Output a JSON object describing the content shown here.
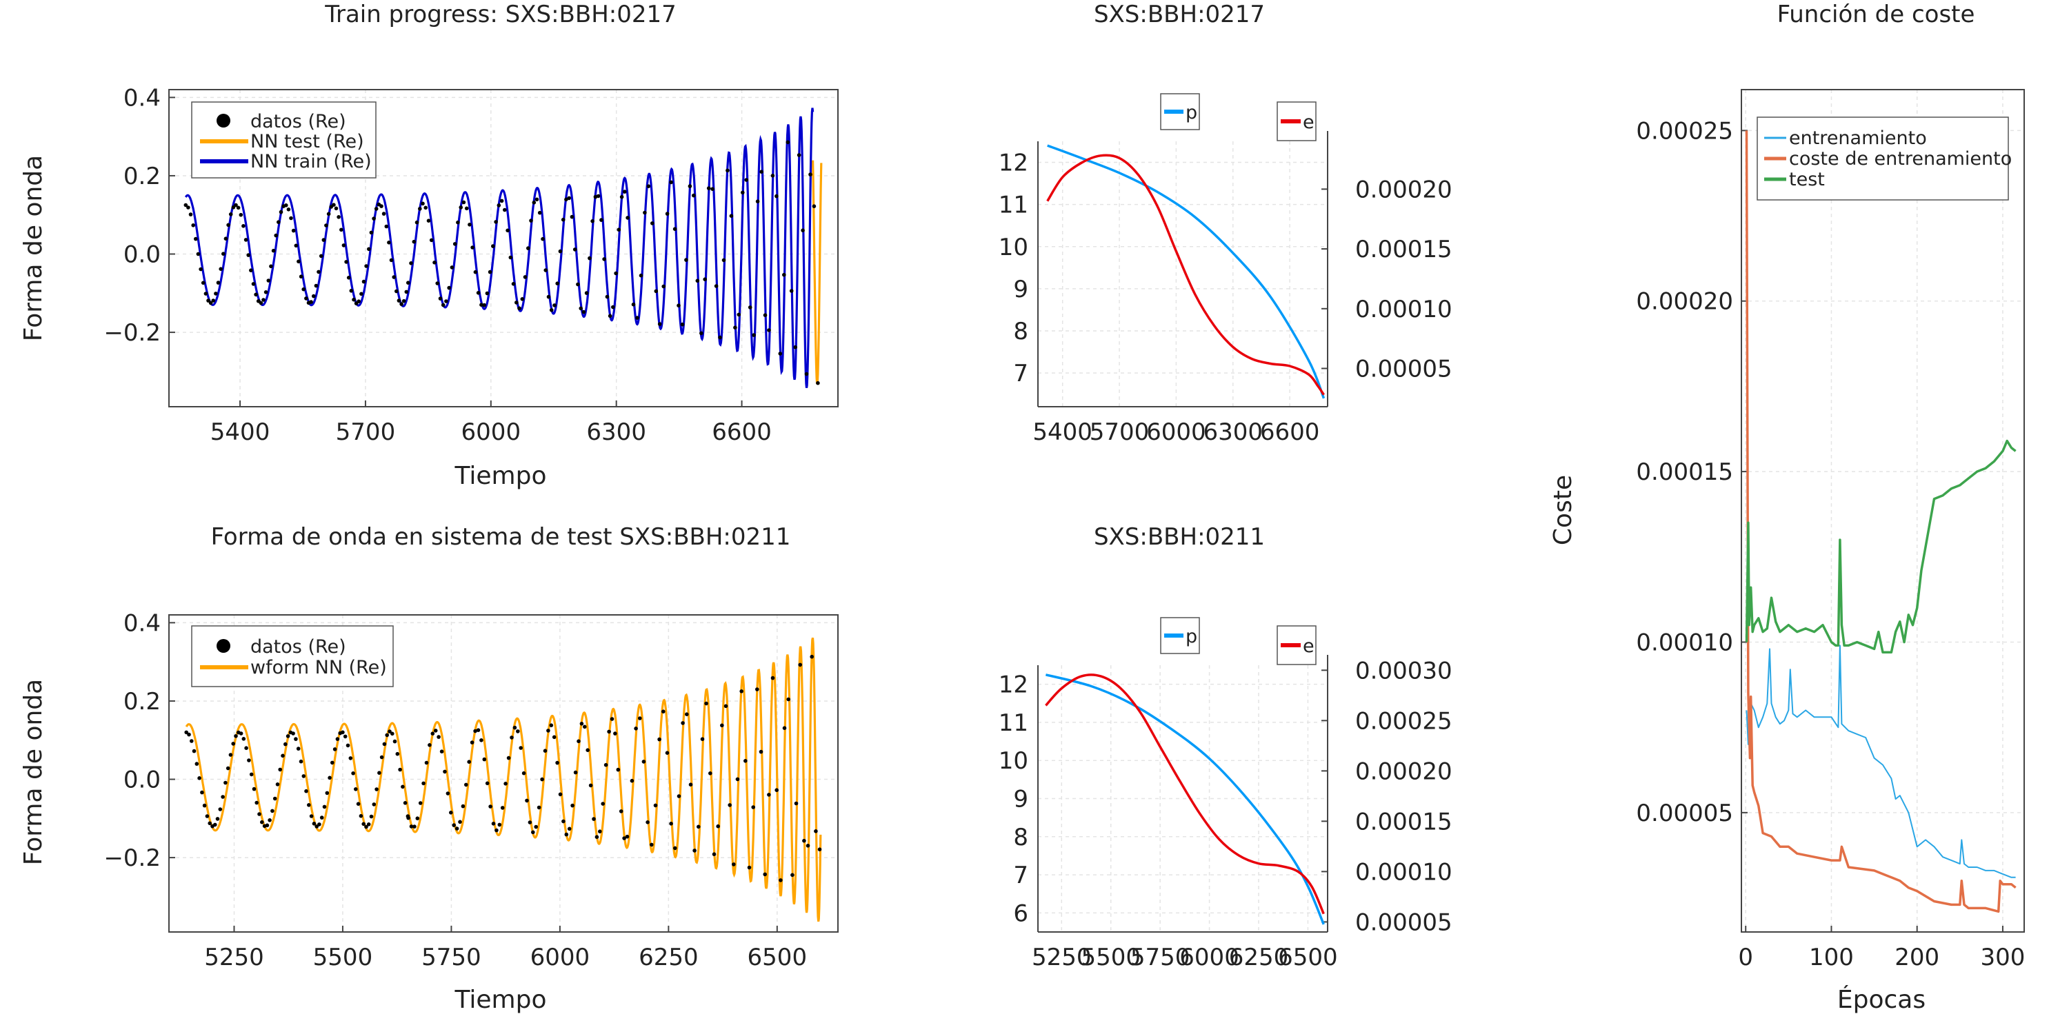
{
  "chart_data": [
    {
      "id": "train",
      "type": "line",
      "title": "Train progress: SXS:BBH:0217",
      "xlabel": "Tiempo",
      "ylabel": "Forma de onda",
      "xlim": [
        5230,
        6830
      ],
      "ylim": [
        -0.39,
        0.42
      ],
      "xticks": [
        5400,
        5700,
        6000,
        6300,
        6600
      ],
      "yticks": [
        -0.2,
        0.0,
        0.2,
        0.4
      ],
      "ytick_labels": [
        "−0.2",
        "0.0",
        "0.2",
        "0.4"
      ],
      "grid": true,
      "legend": "top-left",
      "signal": {
        "t_start": 5270,
        "t_end": 6790,
        "period_start": 120,
        "period_end": 26,
        "amp_start": 0.125,
        "amp_end": 0.34
      },
      "series": [
        {
          "name": "datos (Re)",
          "kind": "dots",
          "color": "#000000",
          "t_start": 5270,
          "t_end": 6790,
          "amp_scale": 1.0,
          "phase": 0.0,
          "amp_shift": 0
        },
        {
          "name": "NN test (Re)",
          "kind": "line",
          "color": "#ffa500",
          "t_start": 6770,
          "t_end": 6790,
          "amp_scale": 1.0,
          "phase": 0.25,
          "amp_shift": 0
        },
        {
          "name": "NN train (Re)",
          "kind": "line",
          "color": "#0000cd",
          "t_start": 5270,
          "t_end": 6770,
          "amp_scale": 1.12,
          "phase": -0.25,
          "amp_shift": 0.01
        }
      ]
    },
    {
      "id": "test",
      "type": "line",
      "title": "Forma de onda en sistema de test SXS:BBH:0211",
      "xlabel": "Tiempo",
      "ylabel": "Forma de onda",
      "xlim": [
        5100,
        6640
      ],
      "ylim": [
        -0.39,
        0.42
      ],
      "xticks": [
        5250,
        5500,
        5750,
        6000,
        6250,
        6500
      ],
      "yticks": [
        -0.2,
        0.0,
        0.2,
        0.4
      ],
      "ytick_labels": [
        "−0.2",
        "0.0",
        "0.2",
        "0.4"
      ],
      "grid": true,
      "legend": "top-left",
      "signal": {
        "t_start": 5140,
        "t_end": 6600,
        "period_start": 122,
        "period_end": 26,
        "amp_start": 0.12,
        "amp_end": 0.33
      },
      "series": [
        {
          "name": "datos (Re)",
          "kind": "dots",
          "color": "#000000",
          "t_start": 5140,
          "t_end": 6600,
          "amp_scale": 1.0,
          "phase": 0.0,
          "amp_shift": 0
        },
        {
          "name": "wform NN (Re)",
          "kind": "line",
          "color": "#ffa500",
          "t_start": 5140,
          "t_end": 6600,
          "amp_scale": 1.13,
          "phase": -0.3,
          "amp_shift": 0.005
        }
      ]
    },
    {
      "id": "orbit1",
      "type": "line",
      "title": "SXS:BBH:0217",
      "xlim": [
        5270,
        6800
      ],
      "xticks": [
        5400,
        5700,
        6000,
        6300,
        6600
      ],
      "left_ylim": [
        6.2,
        12.5
      ],
      "left_yticks": [
        7,
        8,
        9,
        10,
        11,
        12
      ],
      "right_ylim": [
        1.8e-05,
        0.00024
      ],
      "right_yticks": [
        5e-05,
        0.0001,
        0.00015,
        0.0002
      ],
      "right_ytick_labels": [
        "0.00005",
        "0.00010",
        "0.00015",
        "0.00020"
      ],
      "grid": true,
      "series": [
        {
          "name": "p",
          "axis": "left",
          "color": "#009af9",
          "x": [
            5320,
            5500,
            5700,
            5900,
            6100,
            6300,
            6500,
            6700,
            6780
          ],
          "y": [
            12.4,
            12.1,
            11.75,
            11.3,
            10.7,
            9.85,
            8.8,
            7.3,
            6.4
          ]
        },
        {
          "name": "e",
          "axis": "right",
          "color": "#e8000b",
          "x": [
            5320,
            5400,
            5500,
            5600,
            5700,
            5800,
            5900,
            6000,
            6100,
            6200,
            6300,
            6400,
            6500,
            6600,
            6700,
            6750,
            6780
          ],
          "y": [
            0.00019,
            0.00021,
            0.000222,
            0.000228,
            0.000226,
            0.000212,
            0.000186,
            0.000148,
            0.000112,
            8.6e-05,
            6.8e-05,
            5.8e-05,
            5.4e-05,
            5.2e-05,
            4.5e-05,
            3.5e-05,
            2.8e-05
          ]
        }
      ]
    },
    {
      "id": "orbit2",
      "type": "line",
      "title": "SXS:BBH:0211",
      "xlim": [
        5130,
        6600
      ],
      "xticks": [
        5250,
        5500,
        5750,
        6000,
        6250,
        6500
      ],
      "left_ylim": [
        5.5,
        12.5
      ],
      "left_yticks": [
        6,
        7,
        8,
        9,
        10,
        11,
        12
      ],
      "right_ylim": [
        4e-05,
        0.000305
      ],
      "right_yticks": [
        5e-05,
        0.0001,
        0.00015,
        0.0002,
        0.00025,
        0.0003
      ],
      "right_ytick_labels": [
        "0.00005",
        "0.00010",
        "0.00015",
        "0.00020",
        "0.00025",
        "0.00030"
      ],
      "grid": true,
      "series": [
        {
          "name": "p",
          "axis": "left",
          "color": "#009af9",
          "x": [
            5170,
            5400,
            5600,
            5800,
            6000,
            6200,
            6400,
            6500,
            6580
          ],
          "y": [
            12.25,
            11.95,
            11.5,
            10.85,
            10.05,
            8.95,
            7.6,
            6.7,
            5.7
          ]
        },
        {
          "name": "e",
          "axis": "right",
          "color": "#e8000b",
          "x": [
            5170,
            5250,
            5350,
            5450,
            5550,
            5650,
            5750,
            5850,
            5950,
            6050,
            6150,
            6250,
            6350,
            6450,
            6520,
            6580
          ],
          "y": [
            0.000265,
            0.000282,
            0.000294,
            0.000294,
            0.000282,
            0.000258,
            0.000224,
            0.00019,
            0.000158,
            0.000132,
            0.000116,
            0.000108,
            0.000106,
            0.0001,
            8.5e-05,
            5.8e-05
          ]
        }
      ]
    },
    {
      "id": "cost",
      "type": "line",
      "title": "Función de coste",
      "xlabel": "Épocas",
      "ylabel": "Coste",
      "xlim": [
        -5,
        325
      ],
      "ylim": [
        1.5e-05,
        0.000262
      ],
      "xticks": [
        0,
        100,
        200,
        300
      ],
      "yticks": [
        5e-05,
        0.0001,
        0.00015,
        0.0002,
        0.00025
      ],
      "ytick_labels": [
        "0.00005",
        "0.00010",
        "0.00015",
        "0.00020",
        "0.00025"
      ],
      "grid": true,
      "legend": "top-left",
      "series": [
        {
          "name": "entrenamiento",
          "color": "#2aa6e5",
          "x": [
            1,
            3,
            6,
            10,
            15,
            20,
            25,
            28,
            30,
            35,
            40,
            45,
            50,
            52,
            55,
            60,
            70,
            80,
            90,
            100,
            108,
            110,
            112,
            120,
            130,
            140,
            150,
            160,
            170,
            175,
            180,
            190,
            200,
            210,
            220,
            230,
            240,
            250,
            252,
            255,
            260,
            270,
            280,
            290,
            300,
            310,
            315
          ],
          "y": [
            8e-05,
            7e-05,
            8.2e-05,
            8e-05,
            7.5e-05,
            7.8e-05,
            8.2e-05,
            9.8e-05,
            8.2e-05,
            7.8e-05,
            7.6e-05,
            7.7e-05,
            8e-05,
            9.2e-05,
            7.9e-05,
            7.8e-05,
            8e-05,
            7.8e-05,
            7.8e-05,
            7.8e-05,
            7.5e-05,
            9.9e-05,
            7.6e-05,
            7.4e-05,
            7.3e-05,
            7.2e-05,
            6.6e-05,
            6.4e-05,
            6e-05,
            5.4e-05,
            5.5e-05,
            5e-05,
            4e-05,
            4.2e-05,
            4e-05,
            3.7e-05,
            3.6e-05,
            3.5e-05,
            4.2e-05,
            3.5e-05,
            3.4e-05,
            3.4e-05,
            3.3e-05,
            3.3e-05,
            3.2e-05,
            3.1e-05,
            3.1e-05
          ]
        },
        {
          "name": "coste de entrenamiento",
          "color": "#e26f46",
          "x": [
            1,
            3,
            5,
            6,
            8,
            10,
            15,
            20,
            30,
            40,
            50,
            60,
            80,
            100,
            110,
            112,
            120,
            150,
            160,
            170,
            180,
            190,
            200,
            220,
            240,
            250,
            252,
            255,
            260,
            280,
            295,
            297,
            300,
            310,
            315
          ],
          "y": [
            0.00025,
            8.5e-05,
            6.6e-05,
            8.4e-05,
            5.8e-05,
            5.6e-05,
            5.2e-05,
            4.4e-05,
            4.3e-05,
            4e-05,
            4e-05,
            3.8e-05,
            3.7e-05,
            3.6e-05,
            3.6e-05,
            4e-05,
            3.4e-05,
            3.3e-05,
            3.2e-05,
            3.1e-05,
            3e-05,
            2.8e-05,
            2.7e-05,
            2.4e-05,
            2.3e-05,
            2.3e-05,
            3e-05,
            2.3e-05,
            2.2e-05,
            2.2e-05,
            2.1e-05,
            3e-05,
            2.9e-05,
            2.9e-05,
            2.8e-05
          ]
        },
        {
          "name": "test",
          "color": "#3da44d",
          "x": [
            1,
            3,
            4,
            6,
            8,
            10,
            15,
            20,
            25,
            30,
            35,
            40,
            50,
            60,
            70,
            80,
            90,
            100,
            105,
            108,
            110,
            112,
            115,
            120,
            130,
            140,
            150,
            155,
            160,
            170,
            175,
            180,
            185,
            190,
            195,
            200,
            205,
            210,
            220,
            230,
            240,
            250,
            260,
            270,
            280,
            290,
            300,
            305,
            310,
            315
          ],
          "y": [
            0.0001,
            0.000135,
            0.000105,
            0.000116,
            0.000103,
            0.000105,
            0.000107,
            0.000103,
            0.000104,
            0.000113,
            0.000106,
            0.000103,
            0.000105,
            0.000103,
            0.000104,
            0.000103,
            0.000105,
            0.0001,
            9.9e-05,
            9.9e-05,
            0.00013,
            0.000105,
            9.9e-05,
            9.9e-05,
            0.0001,
            9.9e-05,
            9.8e-05,
            0.000103,
            9.7e-05,
            9.7e-05,
            0.000103,
            0.000106,
            0.0001,
            0.000108,
            0.000105,
            0.00011,
            0.000121,
            0.000128,
            0.000142,
            0.000143,
            0.000145,
            0.000146,
            0.000148,
            0.00015,
            0.000151,
            0.000153,
            0.000156,
            0.000159,
            0.000157,
            0.000156
          ]
        }
      ]
    }
  ]
}
